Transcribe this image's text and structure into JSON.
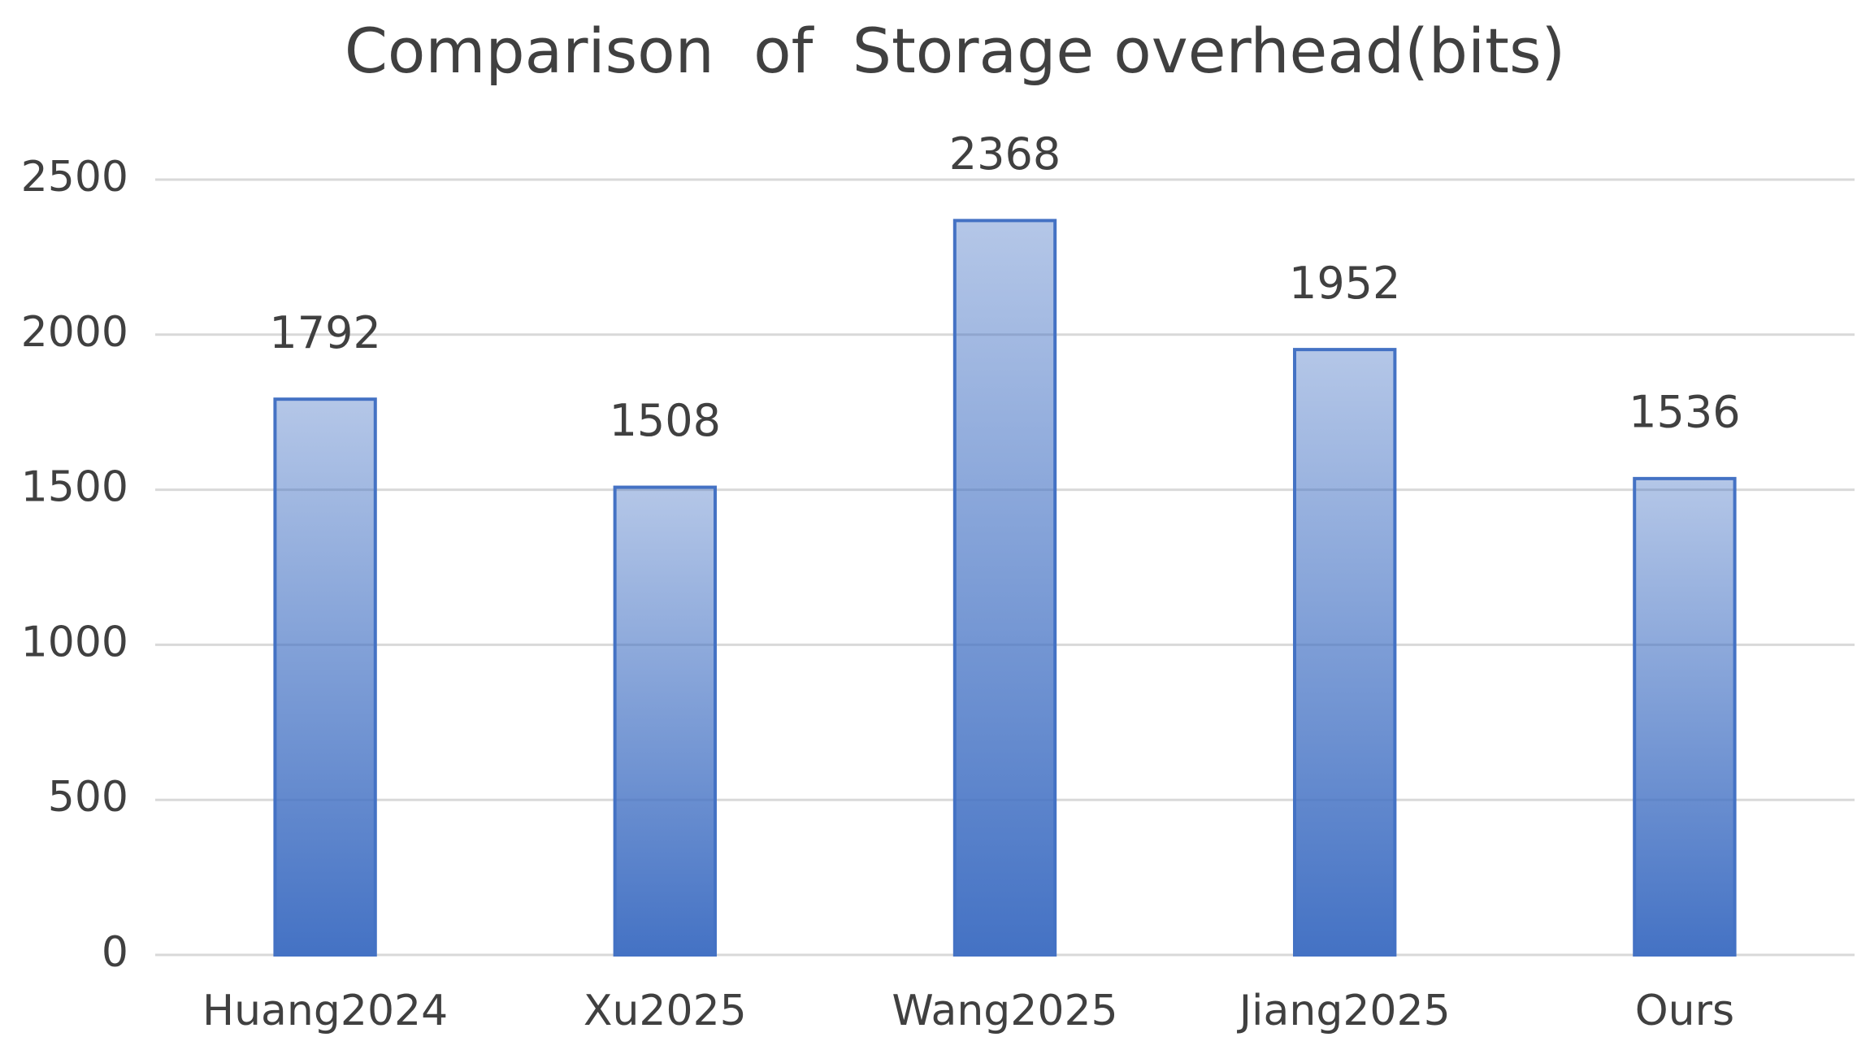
{
  "chart_data": {
    "type": "bar",
    "title": "Comparison  of  Storage overhead(bits)",
    "categories": [
      "Huang2024",
      "Xu2025",
      "Wang2025",
      "Jiang2025",
      "Ours"
    ],
    "values": [
      1792,
      1508,
      2368,
      1952,
      1536
    ],
    "color": "#4472c4",
    "ylim": [
      0,
      2500
    ],
    "yticks": [
      0,
      500,
      1000,
      1500,
      2000,
      2500
    ],
    "grid": true
  }
}
